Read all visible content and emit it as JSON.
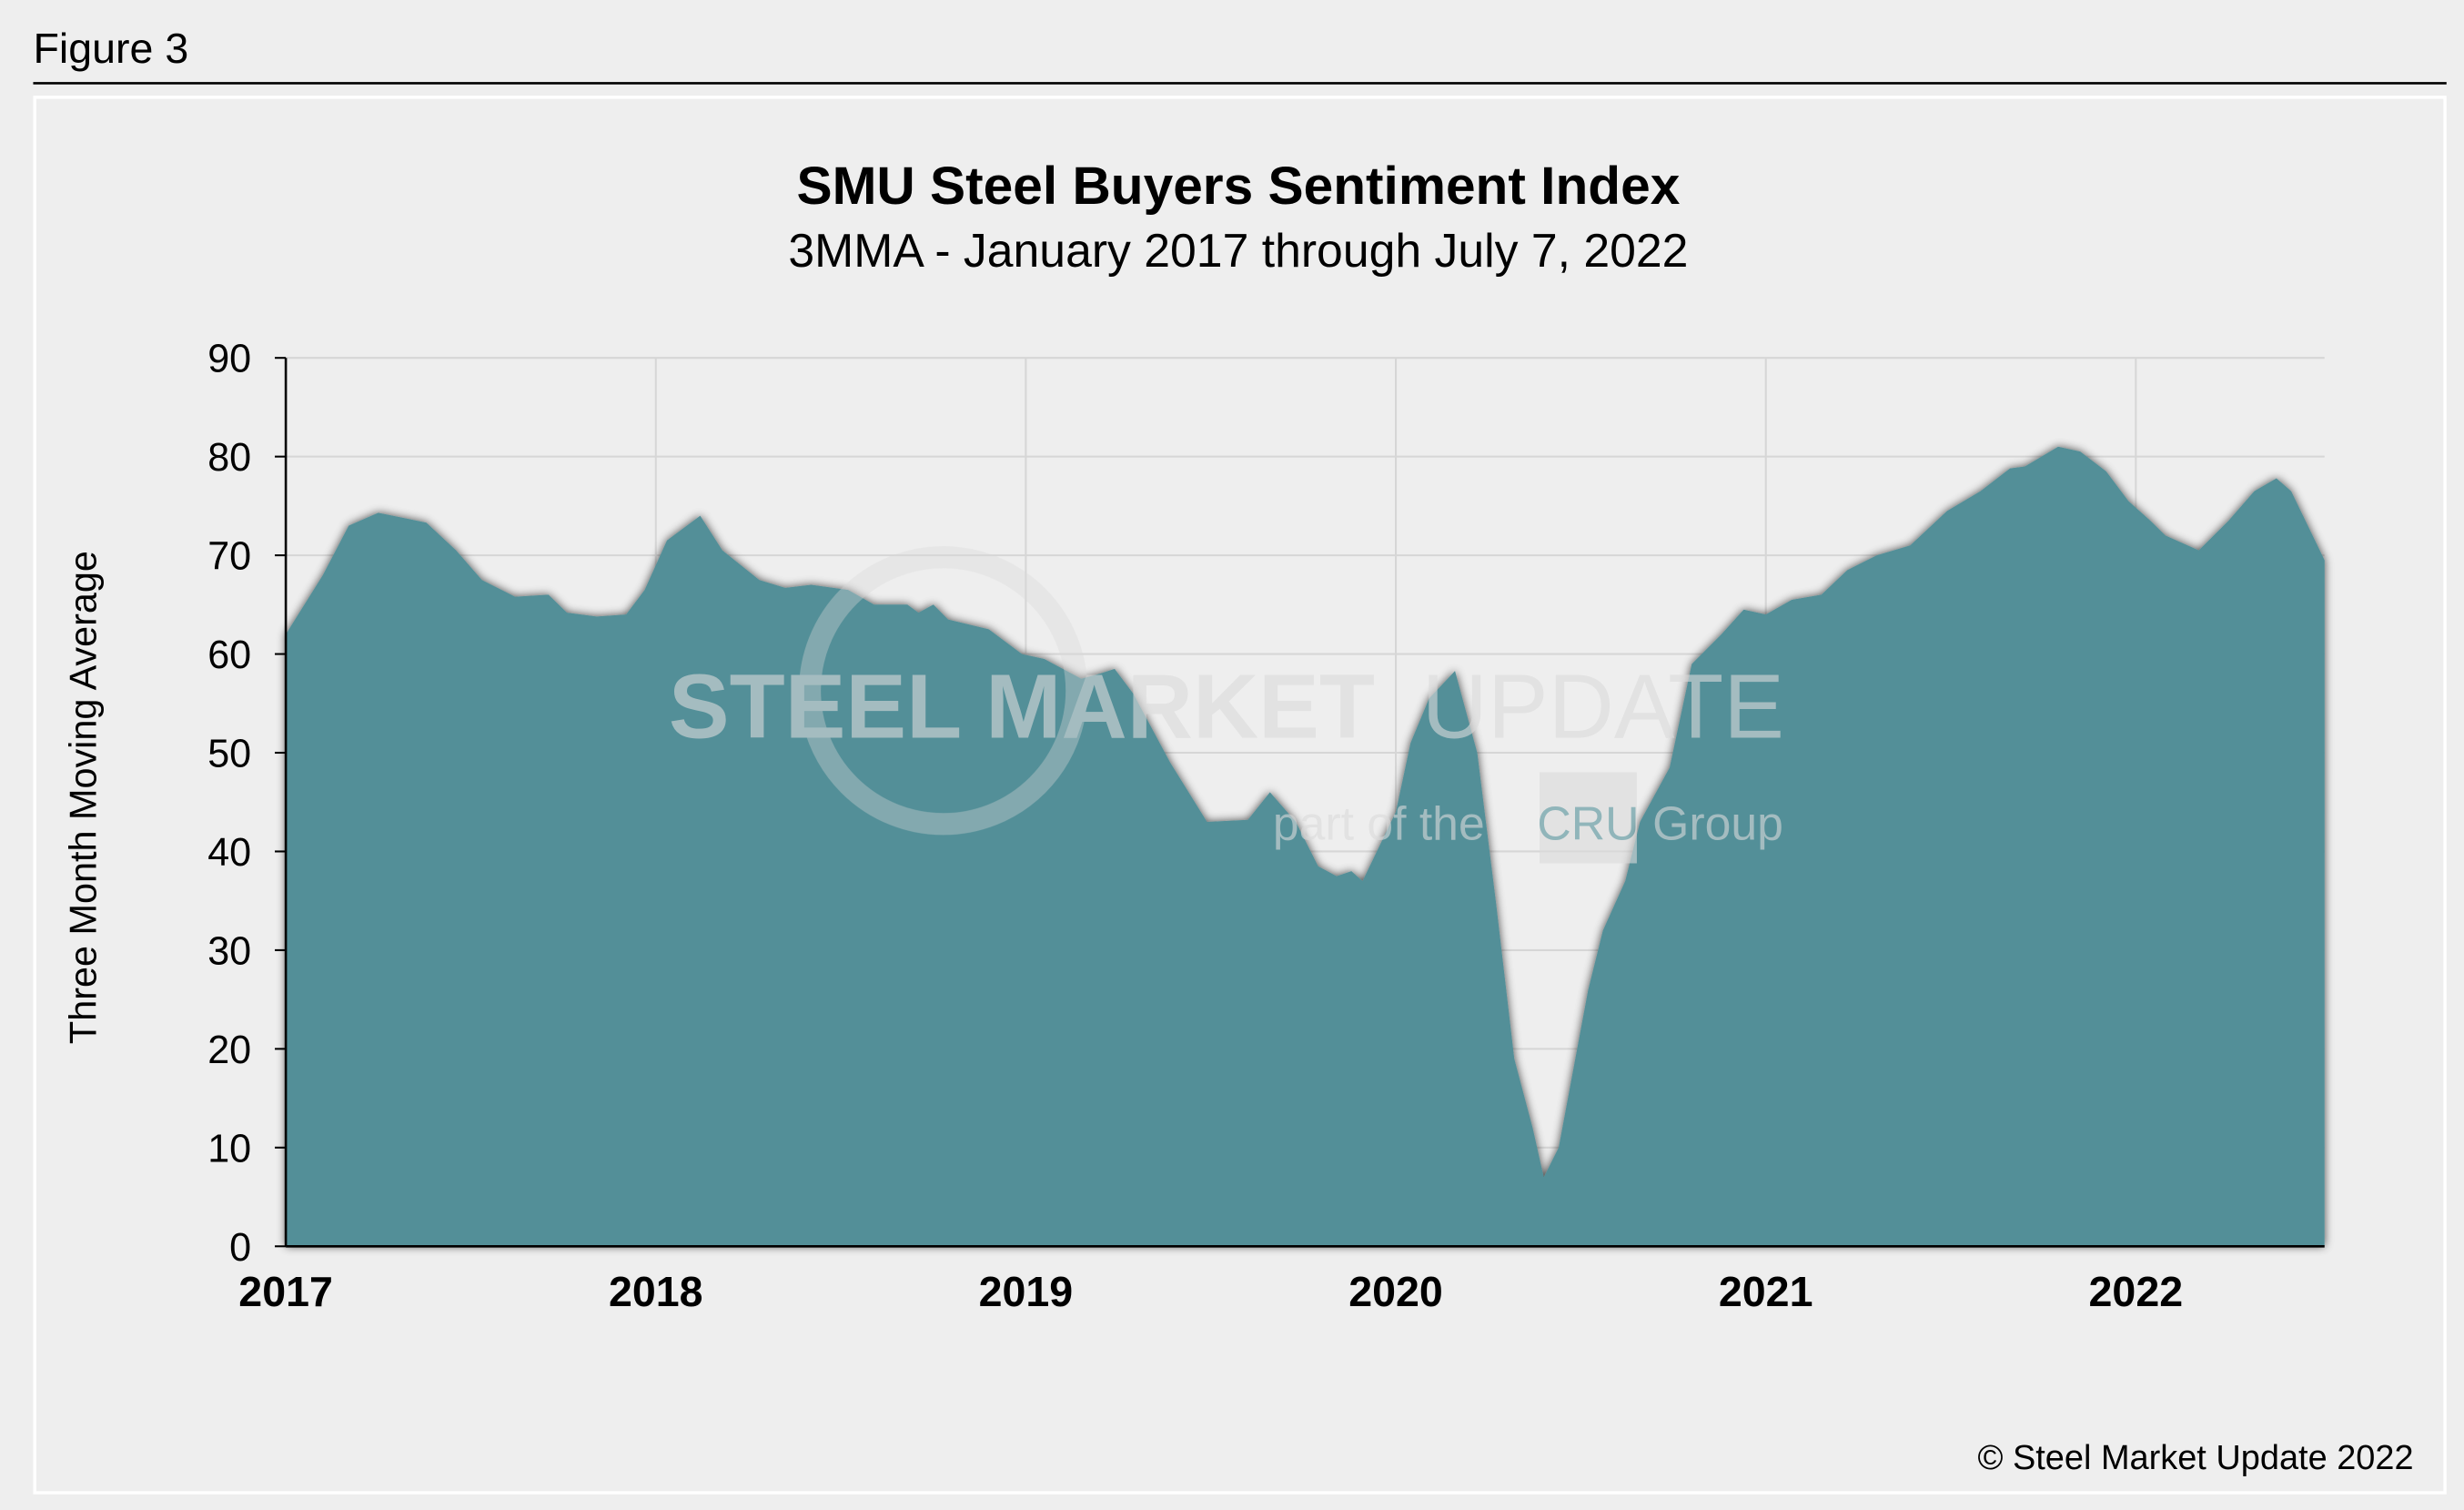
{
  "figure_label": "Figure 3",
  "copyright": "© Steel Market Update 2022",
  "watermark": {
    "line1a": "STEEL MARKET",
    "line1b": "UPDATE",
    "line2a": "part of the",
    "badge": "CRU",
    "line2b": "Group"
  },
  "colors": {
    "area_fill": "#528f98",
    "background": "#eeeeee",
    "grid": "#d6d6d6"
  },
  "chart_data": {
    "type": "area",
    "title": "SMU Steel Buyers Sentiment Index",
    "subtitle": "3MMA - January 2017 through July 7, 2022",
    "xlabel": "",
    "ylabel": "Three Month Moving Average",
    "xlim": [
      2017,
      2022.51
    ],
    "ylim": [
      0,
      90
    ],
    "grid": true,
    "x_ticks": [
      "2017",
      "2018",
      "2019",
      "2020",
      "2021",
      "2022"
    ],
    "y_ticks": [
      "0",
      "10",
      "20",
      "30",
      "40",
      "50",
      "60",
      "70",
      "80",
      "90"
    ],
    "x": [
      2017.0,
      2017.1,
      2017.17,
      2017.25,
      2017.33,
      2017.38,
      2017.46,
      2017.53,
      2017.62,
      2017.71,
      2017.76,
      2017.84,
      2017.92,
      2017.97,
      2018.03,
      2018.12,
      2018.18,
      2018.28,
      2018.35,
      2018.42,
      2018.52,
      2018.59,
      2018.68,
      2018.71,
      2018.75,
      2018.79,
      2018.9,
      2018.99,
      2019.05,
      2019.15,
      2019.2,
      2019.24,
      2019.29,
      2019.39,
      2019.49,
      2019.6,
      2019.66,
      2019.73,
      2019.79,
      2019.84,
      2019.88,
      2019.91,
      2020.0,
      2020.04,
      2020.09,
      2020.16,
      2020.22,
      2020.27,
      2020.32,
      2020.37,
      2020.4,
      2020.44,
      2020.52,
      2020.56,
      2020.62,
      2020.66,
      2020.74,
      2020.8,
      2020.88,
      2020.94,
      2021.0,
      2021.07,
      2021.15,
      2021.22,
      2021.3,
      2021.39,
      2021.49,
      2021.58,
      2021.66,
      2021.7,
      2021.79,
      2021.85,
      2021.92,
      2021.98,
      2022.04,
      2022.08,
      2022.17,
      2022.25,
      2022.32,
      2022.38,
      2022.42,
      2022.51
    ],
    "values": [
      62,
      68,
      73,
      74.3,
      73.7,
      73.3,
      70.5,
      67.5,
      65.8,
      66,
      64.2,
      63.8,
      64,
      66.5,
      71.5,
      74,
      70.5,
      67.5,
      66.7,
      67,
      66.5,
      65,
      65,
      64.2,
      65,
      63.5,
      62.5,
      60,
      59.5,
      57.5,
      58,
      58.5,
      56,
      49,
      43,
      43.2,
      46,
      43,
      38.5,
      37.5,
      38,
      37,
      44,
      51,
      55.5,
      58.3,
      50,
      35,
      19,
      12,
      7,
      10,
      26,
      32,
      37,
      43,
      48.5,
      59,
      62,
      64.5,
      64,
      65.5,
      66,
      68.5,
      70,
      71,
      74.5,
      76.5,
      78.8,
      79,
      81,
      80.5,
      78.5,
      75.5,
      73.5,
      72,
      70.5,
      73.5,
      76.5,
      77.8,
      76.5,
      69.5
    ]
  }
}
